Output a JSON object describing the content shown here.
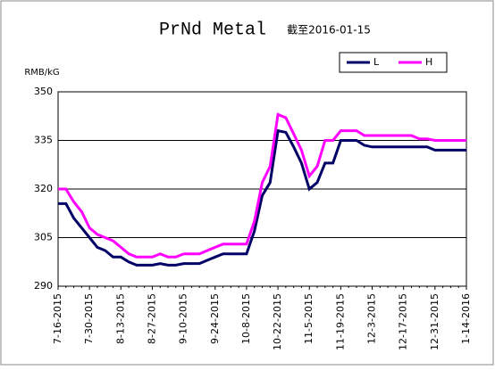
{
  "chart_data": {
    "type": "line",
    "title": "PrNd Metal",
    "subtitle": "截至2016-01-15",
    "y_label": "RMB/kG",
    "categories": [
      "7-16-2015",
      null,
      null,
      null,
      "7-30-2015",
      null,
      null,
      null,
      "8-13-2015",
      null,
      null,
      null,
      "8-27-2015",
      null,
      null,
      null,
      "9-10-2015",
      null,
      null,
      null,
      "9-24-2015",
      null,
      null,
      null,
      "10-8-2015",
      null,
      null,
      null,
      "10-22-2015",
      null,
      null,
      null,
      "11-5-2015",
      null,
      null,
      null,
      "11-19-2015",
      null,
      null,
      null,
      "12-3-2015",
      null,
      null,
      null,
      "12-17-2015",
      null,
      null,
      null,
      "12-31-2015",
      null,
      null,
      null,
      "1-14-2016"
    ],
    "series": [
      {
        "name": "L",
        "color": "#000066",
        "values": [
          315.5,
          315.5,
          311,
          308,
          305,
          302,
          301,
          299,
          299,
          297.5,
          296.5,
          296.5,
          296.5,
          297,
          296.5,
          296.5,
          297,
          297,
          297,
          298,
          299,
          300,
          300,
          300,
          300,
          307,
          318,
          322,
          338,
          337.5,
          333,
          328,
          320,
          322,
          328,
          328,
          335,
          335,
          335,
          333.5,
          333,
          333,
          333,
          333,
          333,
          333,
          333,
          333,
          332,
          332,
          332,
          332,
          332
        ]
      },
      {
        "name": "H",
        "color": "#ff00ff",
        "values": [
          320,
          320,
          316,
          313,
          308,
          306,
          305,
          304,
          302,
          300,
          299,
          299,
          299,
          300,
          299,
          299,
          300,
          300,
          300,
          301,
          302,
          303,
          303,
          303,
          303,
          310,
          322,
          327,
          343,
          342,
          337,
          332,
          324,
          327,
          335,
          335,
          338,
          338,
          338,
          336.5,
          336.5,
          336.5,
          336.5,
          336.5,
          336.5,
          336.5,
          335.5,
          335.5,
          335,
          335,
          335,
          335,
          335
        ]
      }
    ],
    "ylim": [
      290,
      350
    ],
    "yticks": [
      290,
      305,
      320,
      335,
      350
    ],
    "grid": true,
    "legend": "top-right"
  }
}
